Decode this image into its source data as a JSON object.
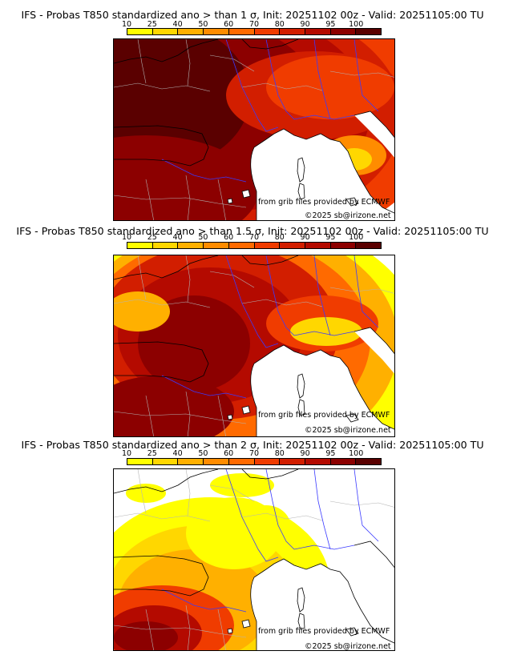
{
  "colorbar": {
    "ticks": [
      "10",
      "25",
      "40",
      "50",
      "60",
      "70",
      "80",
      "90",
      "95",
      "100"
    ],
    "colors": [
      "#ffff00",
      "#ffd700",
      "#ffb000",
      "#ff8c00",
      "#ff6a00",
      "#f03c00",
      "#d21e00",
      "#b40a00",
      "#8c0000",
      "#5a0000"
    ]
  },
  "land_fill": "#ffffff",
  "coast_color": "#000000",
  "border_color": "#3a3aff",
  "region_color": "#b4b4b4",
  "panels": [
    {
      "title": "IFS - Probas T850  standardized ano > than 1 σ, Init: 20251102 00z - Valid: 20251105:00 TU",
      "credit_source": "from grib files provided by ECMWF",
      "credit_copyright": "©2025 sb@irizone.net",
      "coverage": "high"
    },
    {
      "title": "IFS - Probas T850  standardized ano > than 1.5 σ, Init: 20251102 00z - Valid: 20251105:00 TU",
      "credit_source": "from grib files provided by ECMWF",
      "credit_copyright": "©2025 sb@irizone.net",
      "coverage": "medium"
    },
    {
      "title": "IFS - Probas T850  standardized ano > than 2 σ, Init: 20251102 00z - Valid: 20251105:00 TU",
      "credit_source": "from grib files provided by ECMWF",
      "credit_copyright": "©2025 sb@irizone.net",
      "coverage": "low"
    }
  ]
}
